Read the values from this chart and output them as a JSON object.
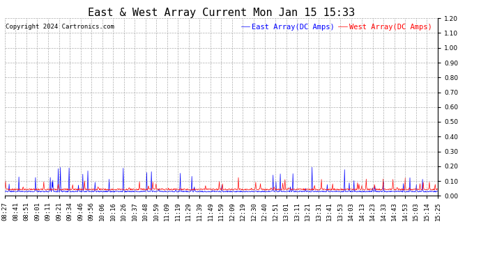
{
  "title": "East & West Array Current Mon Jan 15 15:33",
  "copyright": "Copyright 2024 Cartronics.com",
  "legend_east": "East Array(DC Amps)",
  "legend_west": "West Array(DC Amps)",
  "east_color": "#0000ff",
  "west_color": "#ff0000",
  "ylim": [
    0.0,
    1.2
  ],
  "yticks": [
    0.0,
    0.1,
    0.2,
    0.3,
    0.4,
    0.5,
    0.6,
    0.7,
    0.8,
    0.9,
    1.0,
    1.1,
    1.2
  ],
  "x_labels": [
    "08:27",
    "08:41",
    "08:51",
    "09:01",
    "09:11",
    "09:21",
    "09:34",
    "09:46",
    "09:56",
    "10:06",
    "10:16",
    "10:26",
    "10:37",
    "10:48",
    "10:59",
    "11:09",
    "11:19",
    "11:29",
    "11:39",
    "11:49",
    "11:59",
    "12:09",
    "12:19",
    "12:30",
    "12:40",
    "12:51",
    "13:01",
    "13:11",
    "13:21",
    "13:31",
    "13:41",
    "13:53",
    "14:03",
    "14:13",
    "14:23",
    "14:33",
    "14:43",
    "14:53",
    "15:03",
    "15:14",
    "15:25"
  ],
  "background_color": "#ffffff",
  "grid_color": "#999999",
  "title_fontsize": 11,
  "tick_fontsize": 6.5,
  "copyright_fontsize": 6.5,
  "legend_fontsize": 7.5,
  "east_baseline": 0.025,
  "west_baseline": 0.038,
  "east_spike_max": 0.18,
  "west_spike_max": 0.08
}
